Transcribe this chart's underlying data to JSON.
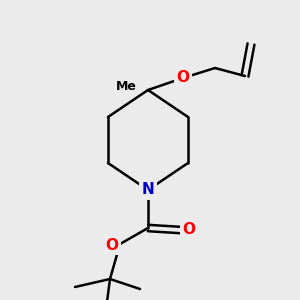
{
  "background_color": "#ebebeb",
  "bond_color": "#000000",
  "bond_width": 1.8,
  "atom_colors": {
    "O": "#ff0000",
    "N": "#0000cc",
    "C": "#000000"
  },
  "font_size_atom": 11,
  "font_size_methyl": 9,
  "figsize": [
    3.0,
    3.0
  ],
  "dpi": 100,
  "xlim": [
    0,
    300
  ],
  "ylim": [
    0,
    300
  ]
}
